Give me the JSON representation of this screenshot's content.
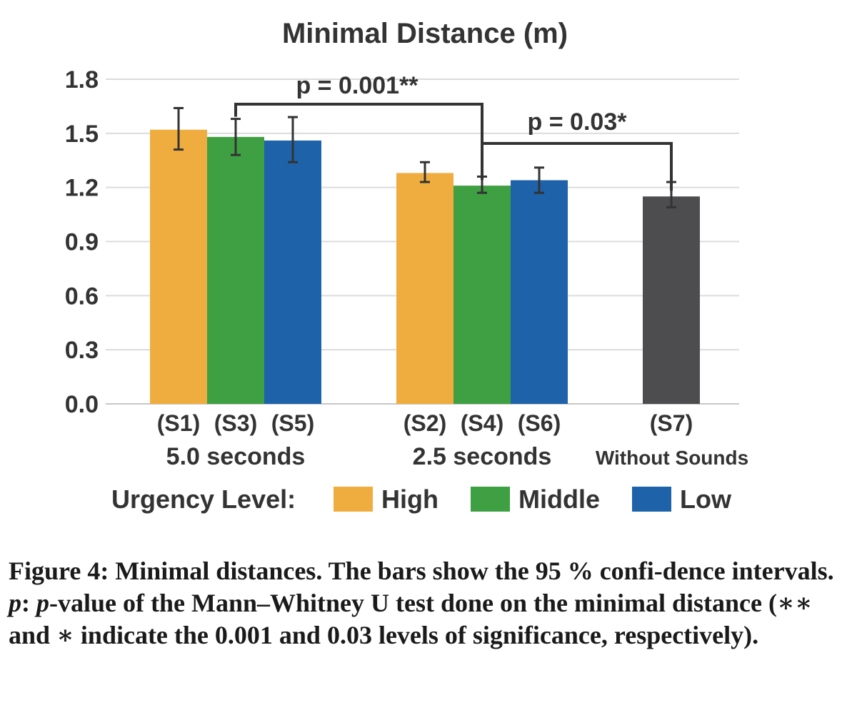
{
  "chart_data": {
    "type": "bar",
    "title": "Minimal Distance (m)",
    "ylim": [
      0,
      1.8
    ],
    "yticks": [
      "0.0",
      "0.3",
      "0.6",
      "0.9",
      "1.2",
      "1.5",
      "1.8"
    ],
    "grid": true,
    "groups": [
      {
        "label": "5.0 seconds",
        "bars": [
          {
            "label": "(S1)",
            "level": "High",
            "value": 1.52,
            "ci_low": 1.41,
            "ci_high": 1.64
          },
          {
            "label": "(S3)",
            "level": "Middle",
            "value": 1.48,
            "ci_low": 1.38,
            "ci_high": 1.58
          },
          {
            "label": "(S5)",
            "level": "Low",
            "value": 1.46,
            "ci_low": 1.34,
            "ci_high": 1.59
          }
        ]
      },
      {
        "label": "2.5 seconds",
        "bars": [
          {
            "label": "(S2)",
            "level": "High",
            "value": 1.28,
            "ci_low": 1.23,
            "ci_high": 1.34
          },
          {
            "label": "(S4)",
            "level": "Middle",
            "value": 1.21,
            "ci_low": 1.17,
            "ci_high": 1.26
          },
          {
            "label": "(S6)",
            "level": "Low",
            "value": 1.24,
            "ci_low": 1.17,
            "ci_high": 1.31
          }
        ]
      },
      {
        "label": "Without Sounds",
        "bars": [
          {
            "label": "(S7)",
            "level": "None",
            "value": 1.15,
            "ci_low": 1.09,
            "ci_high": 1.23
          }
        ]
      }
    ],
    "significance": [
      {
        "label": "p = 0.001**",
        "from": "(S3)",
        "to": "(S4)"
      },
      {
        "label": "p = 0.03*",
        "from": "(S4)",
        "to": "(S7)"
      }
    ],
    "legend": {
      "title": "Urgency Level:",
      "position": "bottom",
      "items": [
        {
          "name": "High",
          "color": "#f0ad3f"
        },
        {
          "name": "Middle",
          "color": "#3fa043"
        },
        {
          "name": "Low",
          "color": "#1e63aa"
        }
      ]
    },
    "colors": {
      "High": "#f0ad3f",
      "Middle": "#3fa043",
      "Low": "#1e63aa",
      "None": "#4d4c4e"
    }
  },
  "caption": {
    "lead": "Figure 4: Minimal distances. The bars show the 95 % confi-dence intervals. ",
    "p_symbol": "p",
    "colon": ": ",
    "p_symbol2": "p",
    "rest": "-value of the Mann–Whitney U test done on the minimal distance (∗∗ and ∗ indicate the 0.001 and 0.03 levels of significance, respectively)."
  }
}
